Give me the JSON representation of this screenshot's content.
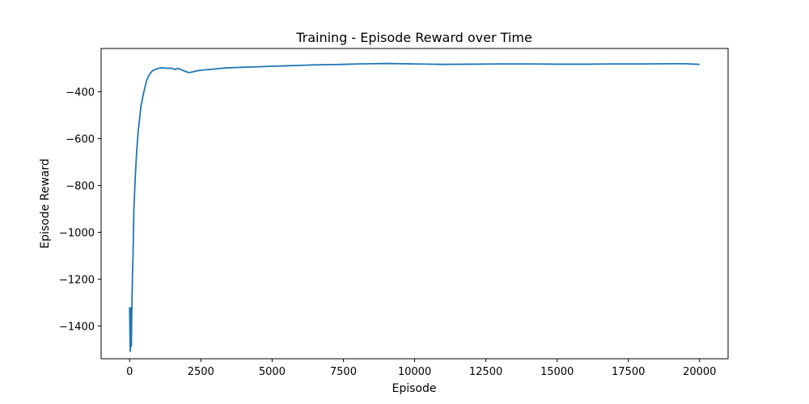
{
  "chart_data": {
    "type": "line",
    "title": "Training - Episode Reward over Time",
    "xlabel": "Episode",
    "ylabel": "Episode Reward",
    "xlim": [
      -1000,
      21000
    ],
    "ylim": [
      -1540,
      -215
    ],
    "xticks": [
      0,
      2500,
      5000,
      7500,
      10000,
      12500,
      15000,
      17500,
      20000
    ],
    "xtick_labels": [
      "0",
      "2500",
      "5000",
      "7500",
      "10000",
      "12500",
      "15000",
      "17500",
      "20000"
    ],
    "yticks": [
      -1400,
      -1200,
      -1000,
      -800,
      -600,
      -400
    ],
    "ytick_labels": [
      "−1400",
      "−1200",
      "−1000",
      "−800",
      "−600",
      "−400"
    ],
    "grid": false,
    "line_color": "#1f77b4",
    "series": [
      {
        "x": [
          0,
          20,
          40,
          60,
          80,
          100,
          120,
          150,
          200,
          250,
          300,
          400,
          500,
          600,
          700,
          800,
          900,
          1000,
          1100,
          1200,
          1300,
          1400,
          1500,
          1600,
          1700,
          1800,
          1900,
          2000,
          2100,
          2200,
          2300,
          2400,
          2500,
          2600,
          2700,
          2800,
          2900,
          3000,
          3200,
          3400,
          3600,
          3800,
          4000,
          4500,
          5000,
          5500,
          6000,
          6500,
          7000,
          7500,
          8000,
          8500,
          9000,
          9500,
          10000,
          11000,
          12000,
          13000,
          14000,
          15000,
          16000,
          17000,
          18000,
          19000,
          19500,
          20000
        ],
        "y": [
          -1320,
          -1510,
          -1320,
          -1490,
          -1310,
          -1180,
          -1100,
          -900,
          -760,
          -650,
          -570,
          -460,
          -400,
          -350,
          -325,
          -310,
          -305,
          -300,
          -298,
          -298,
          -300,
          -299,
          -300,
          -305,
          -300,
          -305,
          -310,
          -315,
          -318,
          -315,
          -312,
          -310,
          -308,
          -307,
          -306,
          -305,
          -304,
          -302,
          -300,
          -298,
          -297,
          -296,
          -295,
          -293,
          -291,
          -289,
          -287,
          -285,
          -284,
          -283,
          -281,
          -280,
          -279,
          -280,
          -281,
          -283,
          -282,
          -281,
          -281,
          -282,
          -282,
          -281,
          -281,
          -280,
          -280,
          -283
        ]
      }
    ]
  }
}
